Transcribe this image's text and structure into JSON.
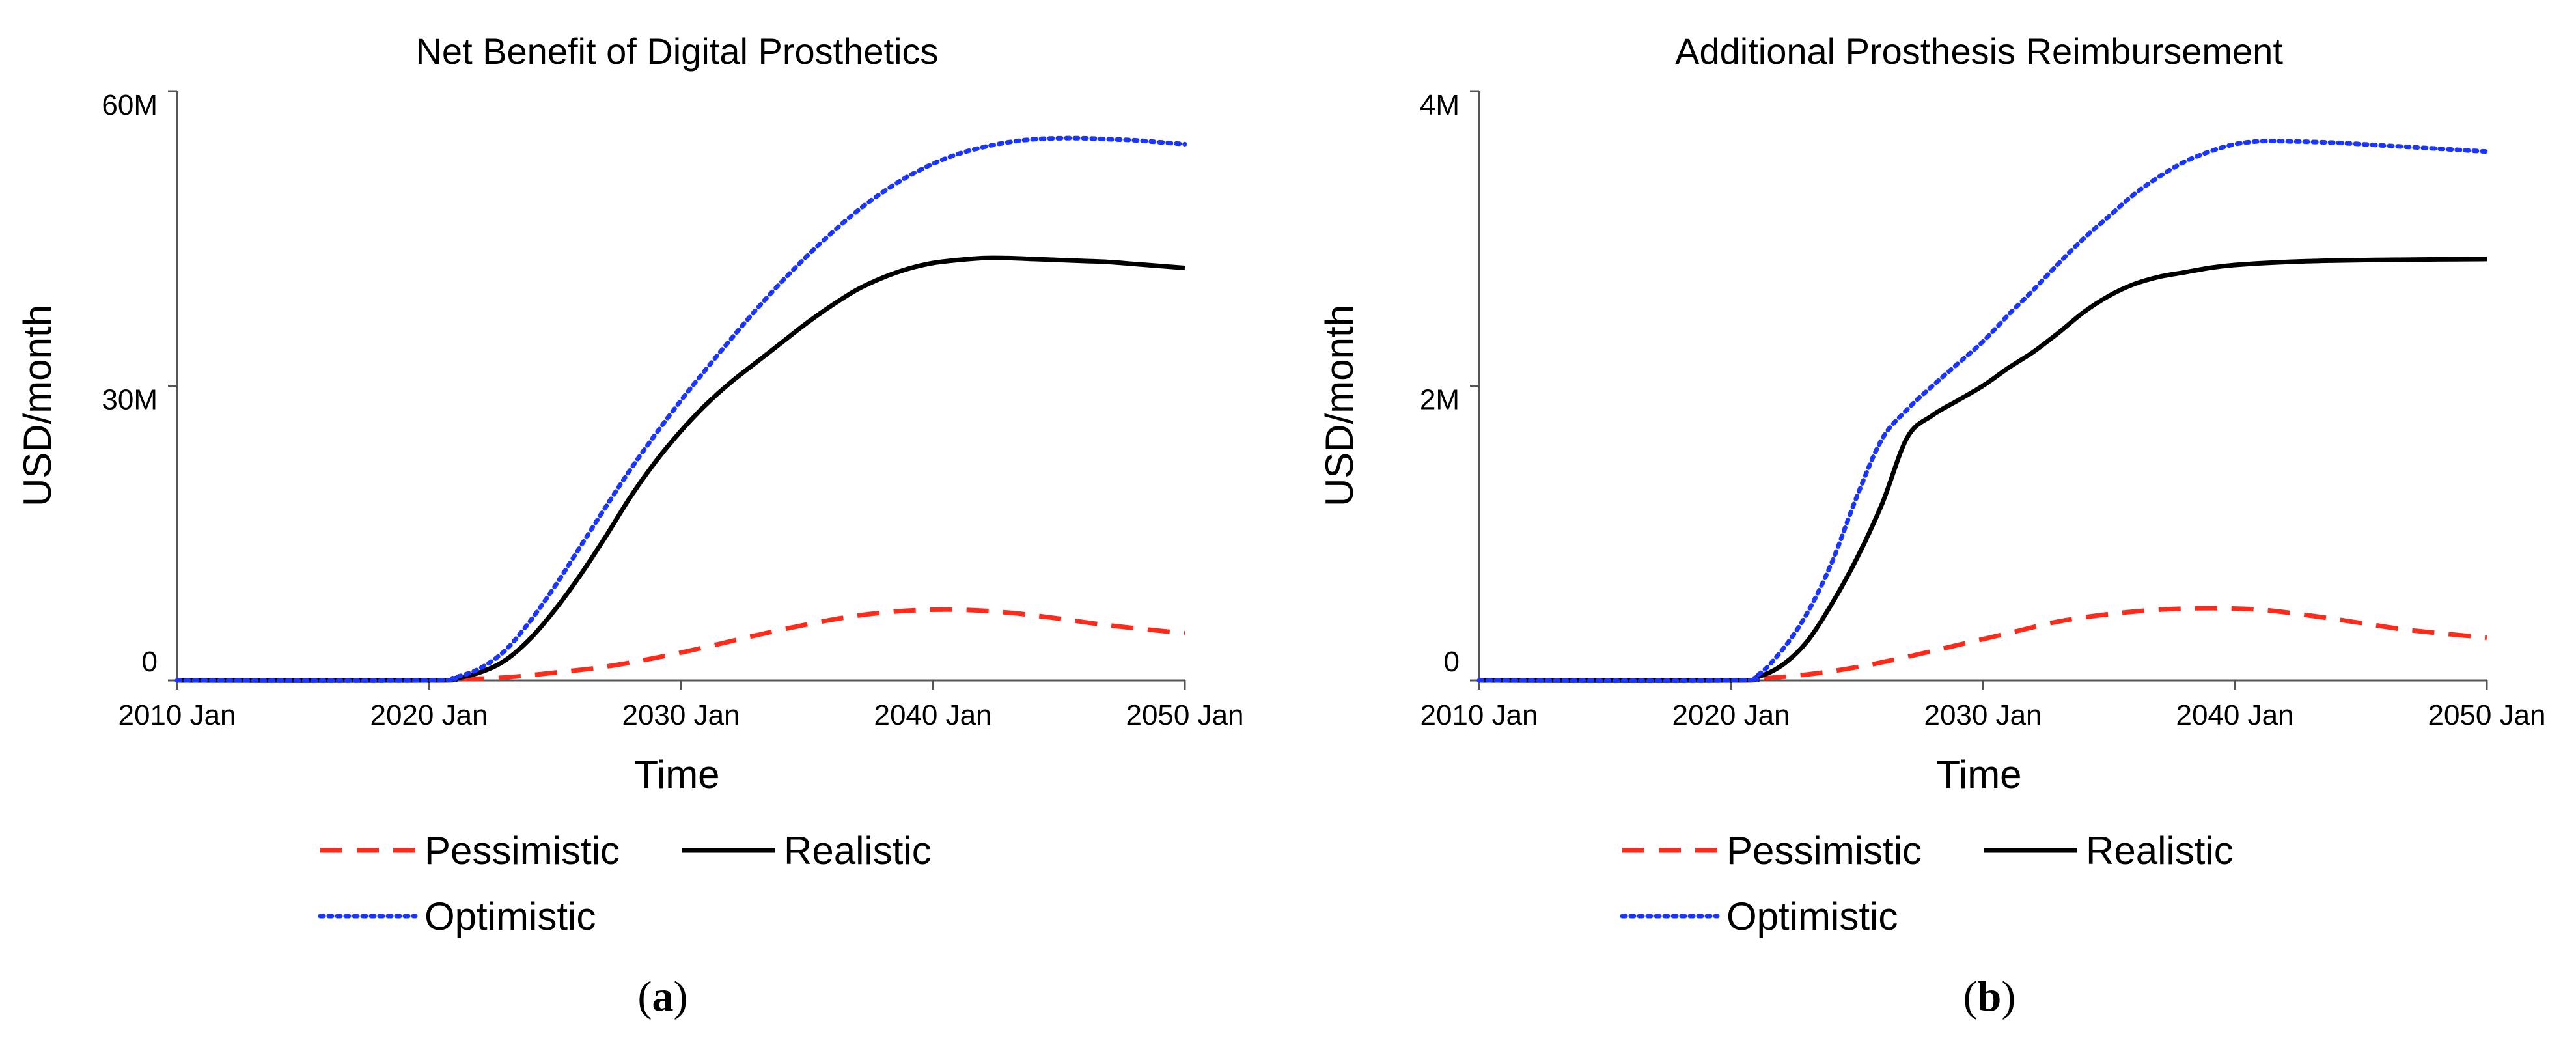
{
  "chart_data": [
    {
      "type": "line",
      "title": "Net Benefit of Digital Prosthetics",
      "xlabel": "Time",
      "ylabel": "USD/month",
      "xlim": [
        2010,
        2050
      ],
      "ylim": [
        0,
        60000000
      ],
      "x_ticks": [
        {
          "value": 2010,
          "label": "2010 Jan"
        },
        {
          "value": 2020,
          "label": "2020 Jan"
        },
        {
          "value": 2030,
          "label": "2030 Jan"
        },
        {
          "value": 2040,
          "label": "2040 Jan"
        },
        {
          "value": 2050,
          "label": "2050 Jan"
        }
      ],
      "y_ticks": [
        {
          "value": 0,
          "label": "0"
        },
        {
          "value": 30000000,
          "label": "30M"
        },
        {
          "value": 60000000,
          "label": "60M"
        }
      ],
      "legend_position": "bottom",
      "caption": {
        "open": "(",
        "letter": "a",
        "close": ")"
      },
      "series": [
        {
          "name": "Pessimistic",
          "style": "dashed",
          "color": "#ff2a1a",
          "x": [
            2010,
            2020,
            2021,
            2023,
            2025,
            2027,
            2029,
            2031,
            2033,
            2035,
            2037,
            2039,
            2041,
            2043,
            2045,
            2047,
            2050
          ],
          "y": [
            0,
            0,
            100000,
            300000,
            800000,
            1400000,
            2300000,
            3400000,
            4600000,
            5700000,
            6600000,
            7100000,
            7200000,
            6900000,
            6300000,
            5600000,
            4800000
          ]
        },
        {
          "name": "Realistic",
          "style": "solid",
          "color": "#000000",
          "x": [
            2010,
            2020,
            2021,
            2022,
            2023,
            2024,
            2025,
            2026,
            2027,
            2028,
            2029,
            2030,
            2031,
            2032,
            2033,
            2034,
            2035,
            2036,
            2037,
            2038,
            2039,
            2040,
            2041,
            2042,
            2043,
            2044,
            2045,
            2046,
            2047,
            2048,
            2049,
            2050
          ],
          "y": [
            0,
            0,
            200000,
            800000,
            2000000,
            4200000,
            7200000,
            10700000,
            14600000,
            18700000,
            22300000,
            25400000,
            28100000,
            30400000,
            32400000,
            34400000,
            36400000,
            38200000,
            39800000,
            41000000,
            41900000,
            42500000,
            42800000,
            43000000,
            43000000,
            42900000,
            42800000,
            42700000,
            42600000,
            42400000,
            42200000,
            42000000
          ]
        },
        {
          "name": "Optimistic",
          "style": "dotted",
          "color": "#1a35ff",
          "x": [
            2010,
            2020,
            2021,
            2022,
            2023,
            2024,
            2025,
            2026,
            2027,
            2028,
            2029,
            2030,
            2031,
            2032,
            2033,
            2034,
            2035,
            2036,
            2037,
            2038,
            2039,
            2040,
            2041,
            2042,
            2043,
            2044,
            2045,
            2046,
            2047,
            2048,
            2049,
            2050
          ],
          "y": [
            0,
            0,
            300000,
            1200000,
            3000000,
            6000000,
            9600000,
            13600000,
            17600000,
            21500000,
            25100000,
            28500000,
            31700000,
            34800000,
            37800000,
            40600000,
            43200000,
            45600000,
            47800000,
            49700000,
            51300000,
            52600000,
            53600000,
            54300000,
            54800000,
            55100000,
            55200000,
            55200000,
            55100000,
            55000000,
            54800000,
            54600000
          ]
        }
      ]
    },
    {
      "type": "line",
      "title": "Additional Prosthesis Reimbursement",
      "xlabel": "Time",
      "ylabel": "USD/month",
      "xlim": [
        2010,
        2050
      ],
      "ylim": [
        0,
        4000000
      ],
      "x_ticks": [
        {
          "value": 2010,
          "label": "2010 Jan"
        },
        {
          "value": 2020,
          "label": "2020 Jan"
        },
        {
          "value": 2030,
          "label": "2030 Jan"
        },
        {
          "value": 2040,
          "label": "2040 Jan"
        },
        {
          "value": 2050,
          "label": "2050 Jan"
        }
      ],
      "y_ticks": [
        {
          "value": 0,
          "label": "0"
        },
        {
          "value": 2000000,
          "label": "2M"
        },
        {
          "value": 4000000,
          "label": "4M"
        }
      ],
      "legend_position": "bottom",
      "caption": {
        "open": "(",
        "letter": "b",
        "close": ")"
      },
      "series": [
        {
          "name": "Pessimistic",
          "style": "dashed",
          "color": "#ff2a1a",
          "x": [
            2010,
            2020,
            2021,
            2023,
            2025,
            2027,
            2029,
            2031,
            2033,
            2035,
            2037,
            2039,
            2041,
            2043,
            2045,
            2047,
            2050
          ],
          "y": [
            0,
            0,
            10000,
            40000,
            90000,
            160000,
            240000,
            320000,
            400000,
            450000,
            480000,
            490000,
            480000,
            440000,
            390000,
            340000,
            290000
          ]
        },
        {
          "name": "Realistic",
          "style": "solid",
          "color": "#000000",
          "x": [
            2010,
            2020,
            2021,
            2022,
            2023,
            2024,
            2025,
            2026,
            2027,
            2028,
            2029,
            2030,
            2031,
            2032,
            2033,
            2034,
            2035,
            2036,
            2037,
            2038,
            2039,
            2040,
            2042,
            2044,
            2046,
            2048,
            2050
          ],
          "y": [
            0,
            0,
            20000,
            100000,
            260000,
            520000,
            830000,
            1200000,
            1650000,
            1800000,
            1900000,
            2000000,
            2120000,
            2230000,
            2360000,
            2500000,
            2610000,
            2690000,
            2740000,
            2770000,
            2800000,
            2820000,
            2840000,
            2850000,
            2855000,
            2858000,
            2860000
          ]
        },
        {
          "name": "Optimistic",
          "style": "dotted",
          "color": "#1a35ff",
          "x": [
            2010,
            2020,
            2021,
            2022,
            2023,
            2024,
            2025,
            2026,
            2027,
            2028,
            2029,
            2030,
            2031,
            2032,
            2033,
            2034,
            2035,
            2036,
            2037,
            2038,
            2039,
            2040,
            2041,
            2042,
            2044,
            2046,
            2048,
            2050
          ],
          "y": [
            0,
            0,
            30000,
            200000,
            450000,
            800000,
            1250000,
            1640000,
            1840000,
            2000000,
            2150000,
            2300000,
            2480000,
            2650000,
            2830000,
            3000000,
            3150000,
            3300000,
            3420000,
            3520000,
            3590000,
            3640000,
            3660000,
            3660000,
            3650000,
            3630000,
            3610000,
            3590000
          ]
        }
      ]
    }
  ]
}
